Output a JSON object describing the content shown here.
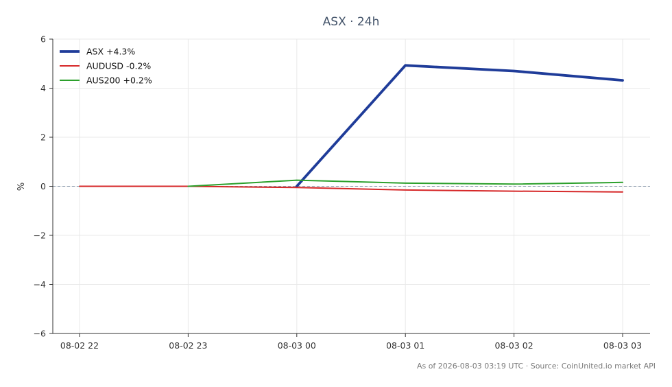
{
  "chart_data": {
    "type": "line",
    "title": "ASX · 24h",
    "xlabel": "",
    "ylabel": "%",
    "x": [
      "08-02 22",
      "08-02 23",
      "08-03 00",
      "08-03 01",
      "08-03 02",
      "08-03 03"
    ],
    "ylim": [
      -6,
      6
    ],
    "yticks": [
      "6",
      "4",
      "2",
      "0",
      "−2",
      "−4",
      "−6"
    ],
    "ytick_values": [
      6,
      4,
      2,
      0,
      -2,
      -4,
      -6
    ],
    "grid": true,
    "zero_line": true,
    "legend_position": "top-left",
    "series": [
      {
        "name": "ASX +4.3%",
        "color": "#1f3c99",
        "values": [
          null,
          null,
          0.0,
          4.93,
          4.7,
          4.32
        ]
      },
      {
        "name": "AUDUSD -0.2%",
        "color": "#d62728",
        "values": [
          0.0,
          0.0,
          -0.05,
          -0.15,
          -0.2,
          -0.23
        ]
      },
      {
        "name": "AUS200 +0.2%",
        "color": "#2ca02c",
        "values": [
          null,
          0.0,
          0.25,
          0.13,
          0.09,
          0.16
        ]
      }
    ]
  },
  "footer": "As of 2026-08-03 03:19 UTC · Source: CoinUnited.io market API"
}
